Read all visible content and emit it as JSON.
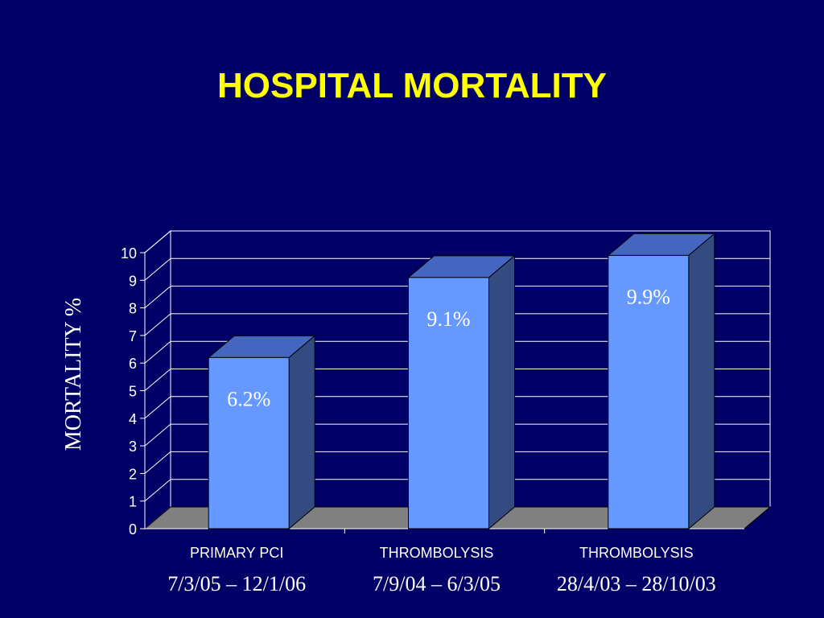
{
  "chart_data": {
    "type": "bar",
    "title": "HOSPITAL MORTALITY",
    "ylabel": "MORTALITY %",
    "xlabel": "",
    "ylim": [
      0,
      10
    ],
    "yticks": [
      0,
      1,
      2,
      3,
      4,
      5,
      6,
      7,
      8,
      9,
      10
    ],
    "categories": [
      "PRIMARY PCI",
      "THROMBOLYSIS",
      "THROMBOLYSIS"
    ],
    "subcategories": [
      "7/3/05 – 12/1/06",
      "7/9/04 – 6/3/05",
      "28/4/03 – 28/10/03"
    ],
    "values": [
      6.2,
      9.1,
      9.9
    ],
    "data_labels": [
      "6.2%",
      "9.1%",
      "9.9%"
    ],
    "grid": true,
    "style": "3d",
    "colors": {
      "background": "#000066",
      "title": "#ffff00",
      "bar_front": "#6699ff",
      "bar_top": "#4466c0",
      "bar_side": "#334b80",
      "floor": "#808080",
      "grid": "#ffffff",
      "text": "#ffffff"
    }
  }
}
